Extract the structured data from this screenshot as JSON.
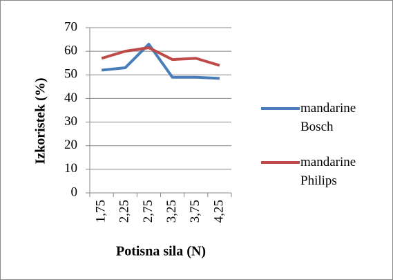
{
  "chart_data": {
    "type": "line",
    "categories": [
      "1,75",
      "2,25",
      "2,75",
      "3,25",
      "3,75",
      "4,25"
    ],
    "series": [
      {
        "name": "mandarine Bosch",
        "color": "#4a7ebb",
        "values": [
          52,
          53,
          63,
          49,
          49,
          48.5
        ]
      },
      {
        "name": "mandarine Philips",
        "color": "#be4b48",
        "values": [
          57,
          60,
          61.5,
          56.5,
          57,
          54
        ]
      }
    ],
    "xlabel": "Potisna sila (N)",
    "ylabel": "Izkoristek (%)",
    "ylim": [
      0,
      70
    ],
    "yticks": [
      0,
      10,
      20,
      30,
      40,
      50,
      60,
      70
    ],
    "grid": true,
    "legend": "right"
  }
}
